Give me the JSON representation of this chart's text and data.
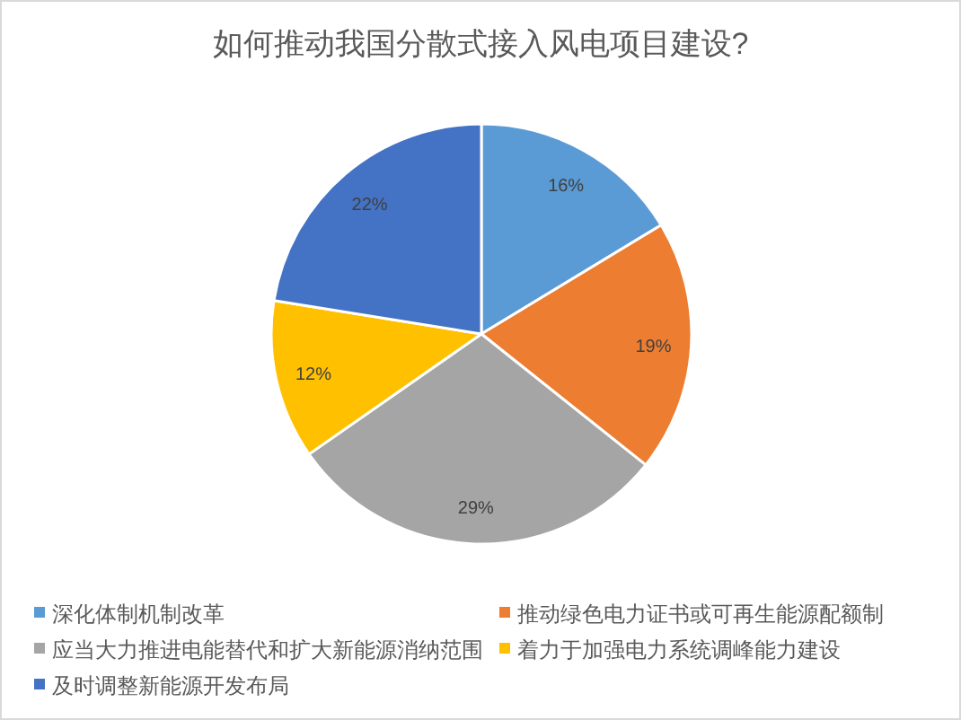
{
  "chart_data": {
    "type": "pie",
    "title": "如何推动我国分散式接入风电项目建设?",
    "categories": [
      "深化体制机制改革",
      "推动绿色电力证书或可再生能源配额制",
      "应当大力推进电能替代和扩大新能源消纳范围",
      "着力于加强电力系统调峰能力建设",
      "及时调整新能源开发布局"
    ],
    "values": [
      16,
      19,
      29,
      12,
      22
    ],
    "colors": [
      "#5b9bd5",
      "#ed7d31",
      "#a5a5a5",
      "#ffc000",
      "#4472c4"
    ],
    "value_labels": [
      "16%",
      "19%",
      "29%",
      "12%",
      "22%"
    ],
    "legend": "bottom"
  }
}
